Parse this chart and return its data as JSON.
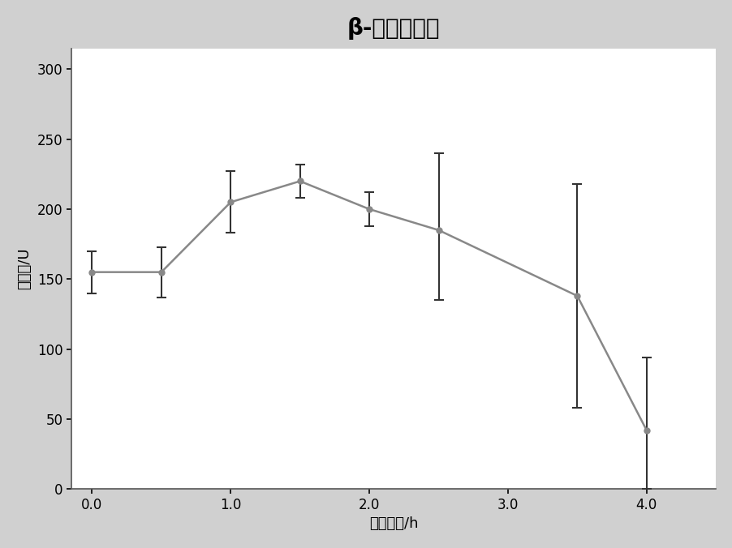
{
  "title": "β-葡萄糖苷酶",
  "xlabel": "发酵时间/h",
  "ylabel": "酶活性/U",
  "x": [
    0.0,
    0.5,
    1.0,
    1.5,
    2.0,
    2.5,
    3.5,
    4.0
  ],
  "y": [
    155,
    155,
    205,
    220,
    200,
    185,
    138,
    42
  ],
  "yerr_upper": [
    15,
    18,
    22,
    12,
    12,
    55,
    80,
    52
  ],
  "yerr_lower": [
    15,
    18,
    22,
    12,
    12,
    50,
    80,
    42
  ],
  "xlim": [
    -0.15,
    4.5
  ],
  "ylim": [
    0,
    315
  ],
  "yticks": [
    0,
    50,
    100,
    150,
    200,
    250,
    300
  ],
  "xticks": [
    0.0,
    1.0,
    2.0,
    3.0,
    4.0
  ],
  "xticklabels": [
    "0.0",
    "1.0",
    "2.0",
    "3.0",
    "4.0"
  ],
  "line_color": "#888888",
  "marker_color": "#888888",
  "marker": "o",
  "markersize": 5,
  "linewidth": 1.8,
  "background_color": "#d0d0d0",
  "plot_background": "#ffffff",
  "title_fontsize": 20,
  "label_fontsize": 13,
  "tick_fontsize": 12
}
